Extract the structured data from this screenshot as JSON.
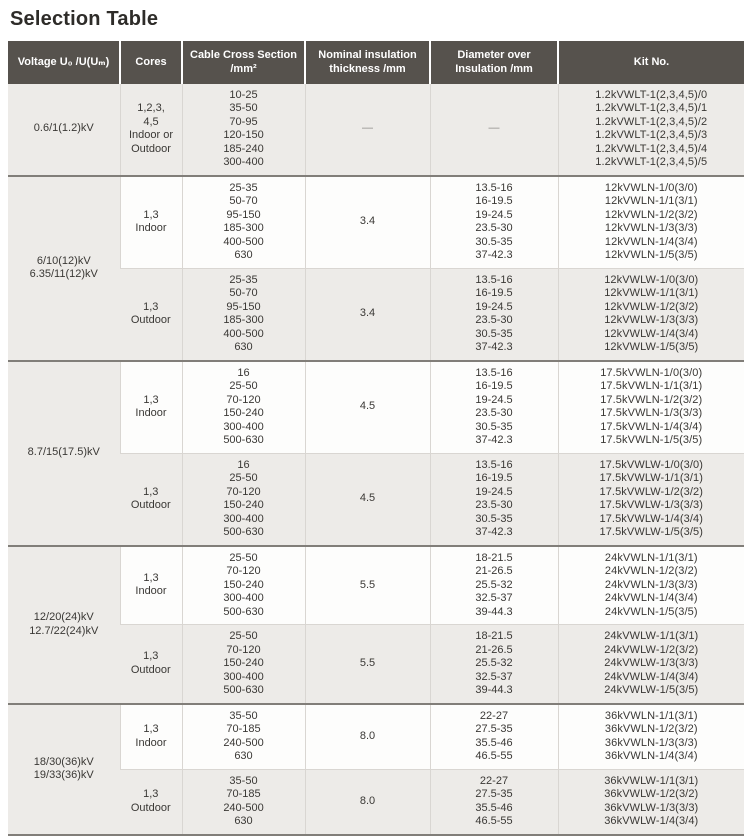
{
  "page": {
    "title": "Selection Table"
  },
  "table": {
    "headers": [
      "Voltage U₀ /U(Uₘ)",
      "Cores",
      "Cable Cross Section /mm²",
      "Nominal insulation thickness /mm",
      "Diameter over Insulation /mm",
      "Kit No."
    ],
    "blocks": [
      {
        "voltage": [
          "0.6/1(1.2)kV"
        ],
        "rows": [
          {
            "cores": [
              "1,2,3,",
              "4,5",
              "Indoor or",
              "Outdoor"
            ],
            "cross_section": [
              "10-25",
              "35-50",
              "70-95",
              "120-150",
              "185-240",
              "300-400"
            ],
            "thickness": "—",
            "diameter": "—",
            "kit_no": [
              "1.2kVWLT-1(2,3,4,5)/0",
              "1.2kVWLT-1(2,3,4,5)/1",
              "1.2kVWLT-1(2,3,4,5)/2",
              "1.2kVWLT-1(2,3,4,5)/3",
              "1.2kVWLT-1(2,3,4,5)/4",
              "1.2kVWLT-1(2,3,4,5)/5"
            ]
          }
        ]
      },
      {
        "voltage": [
          "6/10(12)kV",
          "6.35/11(12)kV"
        ],
        "rows": [
          {
            "cores": [
              "1,3",
              "Indoor"
            ],
            "cross_section": [
              "25-35",
              "50-70",
              "95-150",
              "185-300",
              "400-500",
              "630"
            ],
            "thickness": "3.4",
            "diameter": [
              "13.5-16",
              "16-19.5",
              "19-24.5",
              "23.5-30",
              "30.5-35",
              "37-42.3"
            ],
            "kit_no": [
              "12kVWLN-1/0(3/0)",
              "12kVWLN-1/1(3/1)",
              "12kVWLN-1/2(3/2)",
              "12kVWLN-1/3(3/3)",
              "12kVWLN-1/4(3/4)",
              "12kVWLN-1/5(3/5)"
            ]
          },
          {
            "cores": [
              "1,3",
              "Outdoor"
            ],
            "cross_section": [
              "25-35",
              "50-70",
              "95-150",
              "185-300",
              "400-500",
              "630"
            ],
            "thickness": "3.4",
            "diameter": [
              "13.5-16",
              "16-19.5",
              "19-24.5",
              "23.5-30",
              "30.5-35",
              "37-42.3"
            ],
            "kit_no": [
              "12kVWLW-1/0(3/0)",
              "12kVWLW-1/1(3/1)",
              "12kVWLW-1/2(3/2)",
              "12kVWLW-1/3(3/3)",
              "12kVWLW-1/4(3/4)",
              "12kVWLW-1/5(3/5)"
            ]
          }
        ]
      },
      {
        "voltage": [
          "8.7/15(17.5)kV"
        ],
        "rows": [
          {
            "cores": [
              "1,3",
              "Indoor"
            ],
            "cross_section": [
              "16",
              "25-50",
              "70-120",
              "150-240",
              "300-400",
              "500-630"
            ],
            "thickness": "4.5",
            "diameter": [
              "13.5-16",
              "16-19.5",
              "19-24.5",
              "23.5-30",
              "30.5-35",
              "37-42.3"
            ],
            "kit_no": [
              "17.5kVWLN-1/0(3/0)",
              "17.5kVWLN-1/1(3/1)",
              "17.5kVWLN-1/2(3/2)",
              "17.5kVWLN-1/3(3/3)",
              "17.5kVWLN-1/4(3/4)",
              "17.5kVWLN-1/5(3/5)"
            ]
          },
          {
            "cores": [
              "1,3",
              "Outdoor"
            ],
            "cross_section": [
              "16",
              "25-50",
              "70-120",
              "150-240",
              "300-400",
              "500-630"
            ],
            "thickness": "4.5",
            "diameter": [
              "13.5-16",
              "16-19.5",
              "19-24.5",
              "23.5-30",
              "30.5-35",
              "37-42.3"
            ],
            "kit_no": [
              "17.5kVWLW-1/0(3/0)",
              "17.5kVWLW-1/1(3/1)",
              "17.5kVWLW-1/2(3/2)",
              "17.5kVWLW-1/3(3/3)",
              "17.5kVWLW-1/4(3/4)",
              "17.5kVWLW-1/5(3/5)"
            ]
          }
        ]
      },
      {
        "voltage": [
          "12/20(24)kV",
          "12.7/22(24)kV"
        ],
        "rows": [
          {
            "cores": [
              "1,3",
              "Indoor"
            ],
            "cross_section": [
              "25-50",
              "70-120",
              "150-240",
              "300-400",
              "500-630"
            ],
            "thickness": "5.5",
            "diameter": [
              "18-21.5",
              "21-26.5",
              "25.5-32",
              "32.5-37",
              "39-44.3"
            ],
            "kit_no": [
              "24kVWLN-1/1(3/1)",
              "24kVWLN-1/2(3/2)",
              "24kVWLN-1/3(3/3)",
              "24kVWLN-1/4(3/4)",
              "24kVWLN-1/5(3/5)"
            ]
          },
          {
            "cores": [
              "1,3",
              "Outdoor"
            ],
            "cross_section": [
              "25-50",
              "70-120",
              "150-240",
              "300-400",
              "500-630"
            ],
            "thickness": "5.5",
            "diameter": [
              "18-21.5",
              "21-26.5",
              "25.5-32",
              "32.5-37",
              "39-44.3"
            ],
            "kit_no": [
              "24kVWLW-1/1(3/1)",
              "24kVWLW-1/2(3/2)",
              "24kVWLW-1/3(3/3)",
              "24kVWLW-1/4(3/4)",
              "24kVWLW-1/5(3/5)"
            ]
          }
        ]
      },
      {
        "voltage": [
          "18/30(36)kV",
          "19/33(36)kV"
        ],
        "rows": [
          {
            "cores": [
              "1,3",
              "Indoor"
            ],
            "cross_section": [
              "35-50",
              "70-185",
              "240-500",
              "630"
            ],
            "thickness": "8.0",
            "diameter": [
              "22-27",
              "27.5-35",
              "35.5-46",
              "46.5-55"
            ],
            "kit_no": [
              "36kVWLN-1/1(3/1)",
              "36kVWLN-1/2(3/2)",
              "36kVWLN-1/3(3/3)",
              "36kVWLN-1/4(3/4)"
            ]
          },
          {
            "cores": [
              "1,3",
              "Outdoor"
            ],
            "cross_section": [
              "35-50",
              "70-185",
              "240-500",
              "630"
            ],
            "thickness": "8.0",
            "diameter": [
              "22-27",
              "27.5-35",
              "35.5-46",
              "46.5-55"
            ],
            "kit_no": [
              "36kVWLW-1/1(3/1)",
              "36kVWLW-1/2(3/2)",
              "36kVWLW-1/3(3/3)",
              "36kVWLW-1/4(3/4)"
            ]
          }
        ]
      }
    ]
  }
}
